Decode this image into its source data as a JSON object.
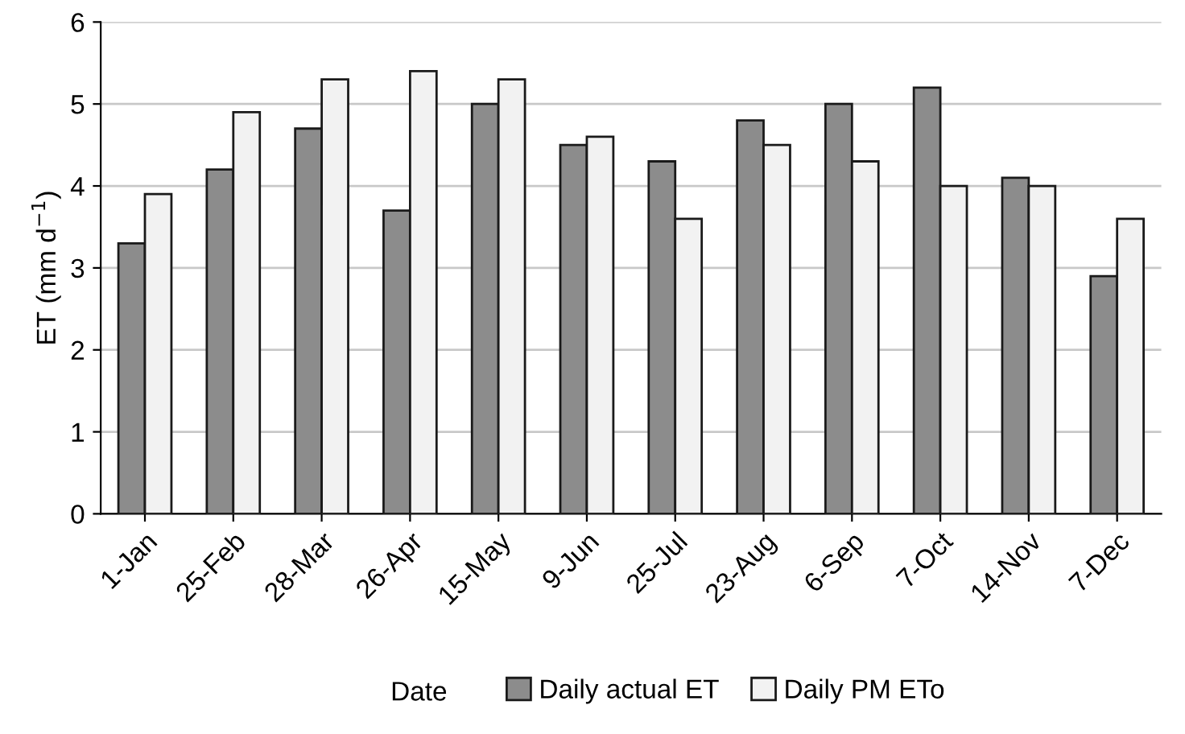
{
  "chart_data": {
    "type": "bar",
    "xlabel": "Date",
    "ylabel": "ET (mm d$^{−1}$)",
    "categories": [
      "1-Jan",
      "25-Feb",
      "28-Mar",
      "26-Apr",
      "15-May",
      "9-Jun",
      "25-Jul",
      "23-Aug",
      "6-Sep",
      "7-Oct",
      "14-Nov",
      "7-Dec"
    ],
    "series": [
      {
        "name": "Daily actual ET",
        "color": "#8c8c8c",
        "values": [
          3.3,
          4.2,
          4.7,
          3.7,
          5.0,
          4.5,
          4.3,
          4.8,
          5.0,
          5.2,
          4.1,
          2.9
        ]
      },
      {
        "name": "Daily PM ETo",
        "color": "#f2f2f2",
        "values": [
          3.9,
          4.9,
          5.3,
          5.4,
          5.3,
          4.6,
          3.6,
          4.5,
          4.3,
          4.0,
          4.0,
          3.6
        ]
      }
    ],
    "ylim": [
      0,
      6
    ],
    "yticks": [
      0,
      1,
      2,
      3,
      4,
      5,
      6
    ],
    "grid": "y",
    "legend": "bottom"
  }
}
